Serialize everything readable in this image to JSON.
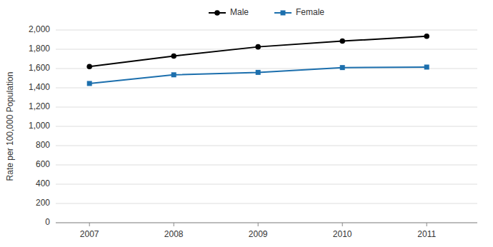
{
  "chart_data": {
    "type": "line",
    "y_label": "Rate per 100,000 Population",
    "x": [
      2007,
      2008,
      2009,
      2010,
      2011
    ],
    "xlim": [
      2006.6,
      2011.6
    ],
    "xticks": [
      2007,
      2008,
      2009,
      2010,
      2011
    ],
    "ylim": [
      0,
      2000
    ],
    "yticks": [
      0,
      200,
      400,
      600,
      800,
      {
        "value": 1000,
        "label": "1,000"
      },
      {
        "value": 1200,
        "label": "1,200"
      },
      {
        "value": 1400,
        "label": "1,400"
      },
      {
        "value": 1600,
        "label": "1,600"
      },
      {
        "value": 1800,
        "label": "1,800"
      },
      {
        "value": 2000,
        "label": "2,000"
      }
    ],
    "grid": true,
    "legend": "top",
    "series": [
      {
        "name": "Male",
        "color": "#000000",
        "marker": "circle",
        "values": [
          1620,
          1730,
          1825,
          1885,
          1935
        ]
      },
      {
        "name": "Female",
        "color": "#1c6fad",
        "marker": "square",
        "values": [
          1445,
          1535,
          1560,
          1610,
          1615
        ]
      }
    ]
  }
}
